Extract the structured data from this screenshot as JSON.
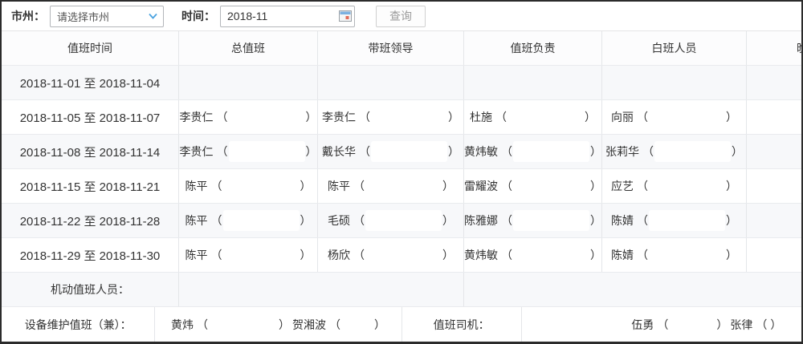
{
  "toolbar": {
    "region_label": "市州：",
    "region_select_value": "请选择市州",
    "time_label": "时间：",
    "time_value": "2018-11",
    "query_button": "查询"
  },
  "table": {
    "paren_open": "（",
    "paren_close": "）",
    "headers": [
      "值班时间",
      "总值班",
      "带班领导",
      "值班负责",
      "白班人员",
      "晚班人员"
    ],
    "rows": [
      {
        "time": "2018-11-01 至 2018-11-04",
        "names": [
          null,
          null,
          null,
          null,
          null
        ]
      },
      {
        "time": "2018-11-05 至 2018-11-07",
        "names": [
          "李贵仁",
          "李贵仁",
          "杜施",
          "向丽",
          null
        ]
      },
      {
        "time": "2018-11-08 至 2018-11-14",
        "names": [
          "李贵仁",
          "戴长华",
          "黄炜敏",
          "张莉华",
          null
        ]
      },
      {
        "time": "2018-11-15 至 2018-11-21",
        "names": [
          "陈平",
          "陈平",
          "雷耀波",
          "应艺",
          null
        ]
      },
      {
        "time": "2018-11-22 至 2018-11-28",
        "names": [
          "陈平",
          "毛硕",
          "陈雅娜",
          "陈婧",
          null
        ]
      },
      {
        "time": "2018-11-29 至 2018-11-30",
        "names": [
          "陈平",
          "杨欣",
          "黄炜敏",
          "陈婧",
          null
        ]
      }
    ],
    "footer": {
      "mobile_label": "机动值班人员：",
      "device_label": "设备维护值班（兼）：",
      "device_names": [
        "黄炜",
        "贺湘波"
      ],
      "driver_label": "值班司机：",
      "driver_names": [
        "伍勇",
        "张律"
      ]
    }
  }
}
